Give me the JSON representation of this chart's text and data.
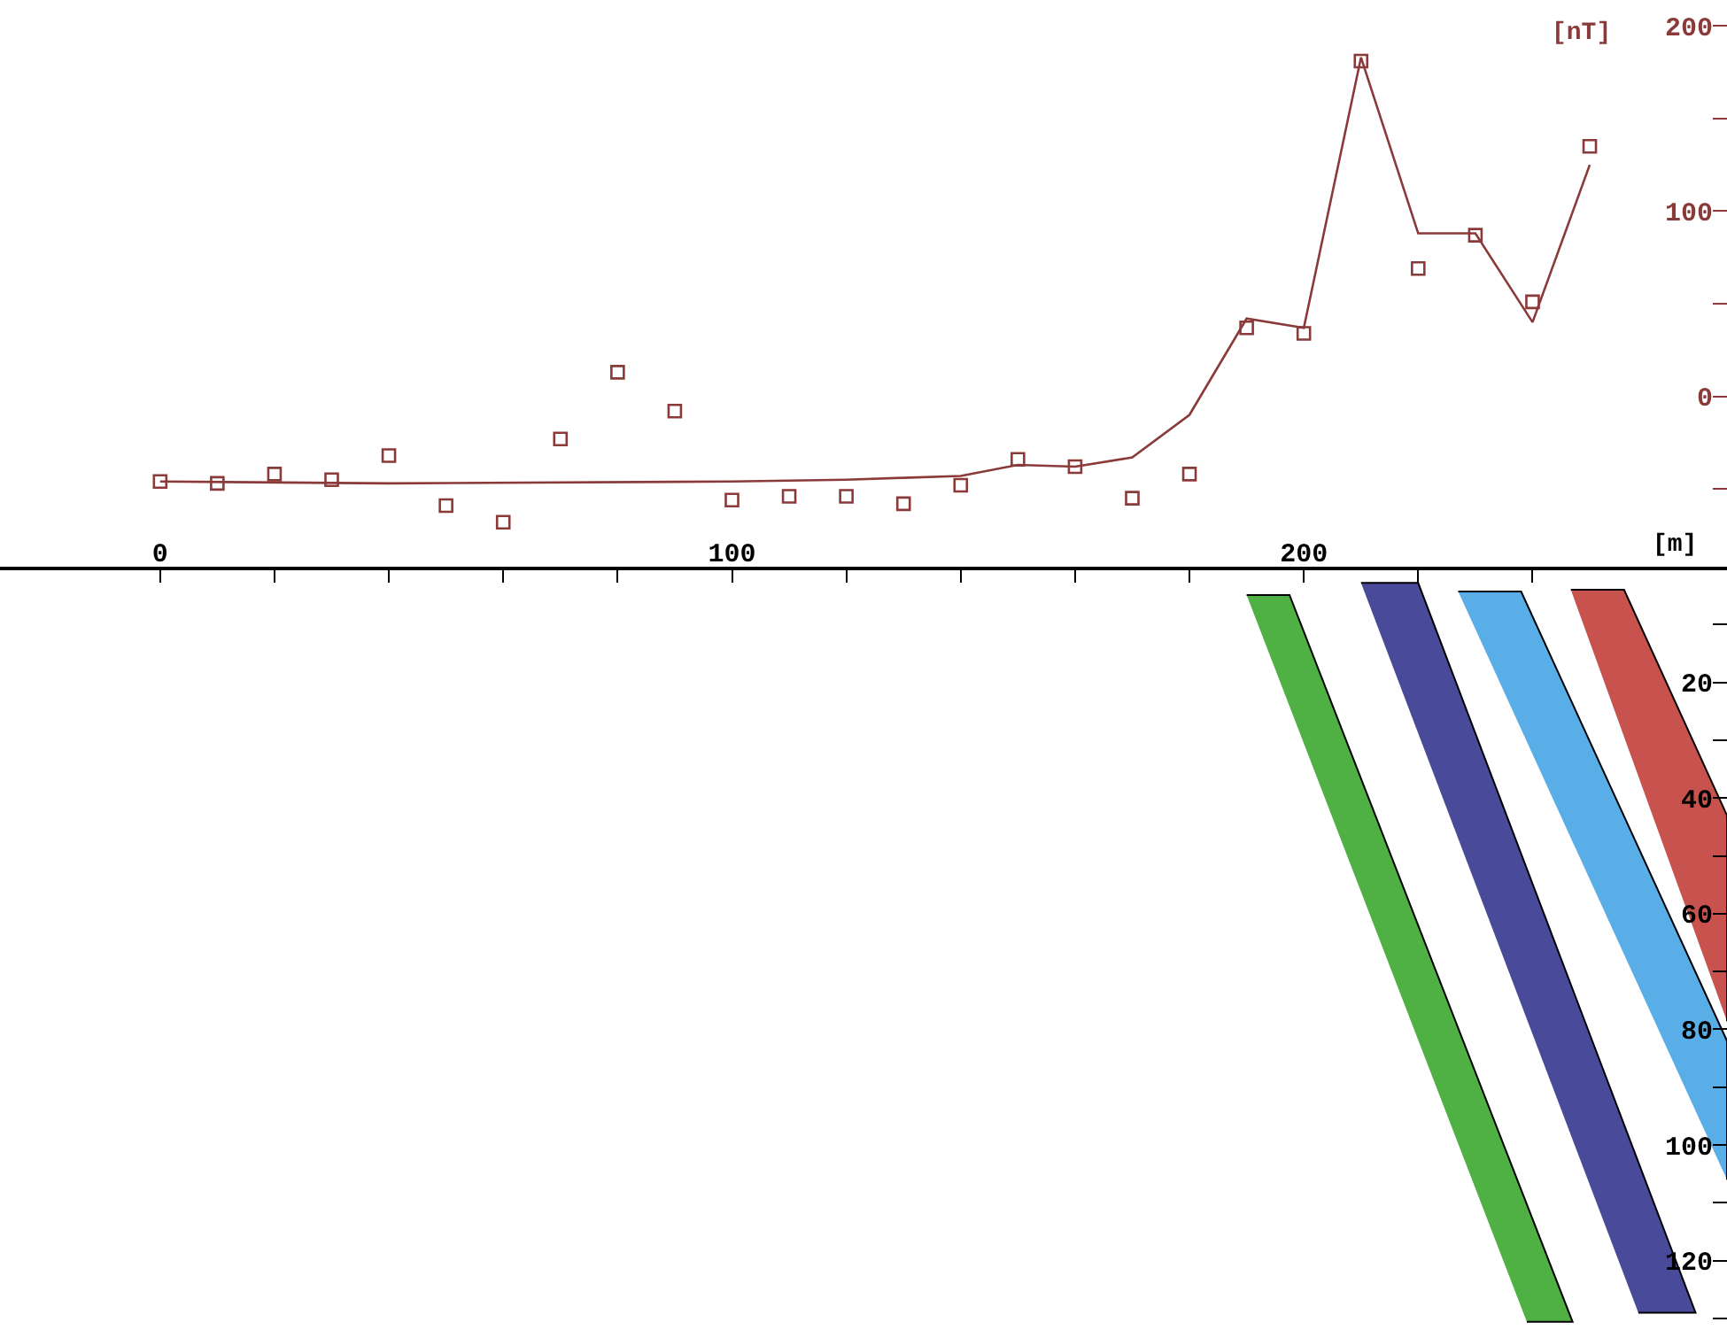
{
  "chart_data": [
    {
      "type": "line",
      "xlabel": "[m]",
      "ylabel": "[nT]",
      "xlim": [
        -28,
        274
      ],
      "ylim": [
        -92,
        214
      ],
      "xticks": [
        0,
        {
          "value": 20,
          "label": null
        },
        {
          "value": 40,
          "label": null
        },
        {
          "value": 60,
          "label": null
        },
        {
          "value": 80,
          "label": null
        },
        100,
        {
          "value": 120,
          "label": null
        },
        {
          "value": 140,
          "label": null
        },
        {
          "value": 160,
          "label": null
        },
        {
          "value": 180,
          "label": null
        },
        200,
        {
          "value": 220,
          "label": null
        },
        {
          "value": 240,
          "label": null
        }
      ],
      "yticks": [
        {
          "value": -50,
          "label": null
        },
        0,
        {
          "value": 50,
          "label": null
        },
        100,
        {
          "value": 150,
          "label": null
        },
        200
      ],
      "series": [
        {
          "type": "line",
          "color": "#8b3a3a",
          "line_style": "solid",
          "marker": "none",
          "x": [
            0,
            40,
            100,
            120,
            130,
            140,
            150,
            160,
            170,
            180,
            190,
            200,
            210,
            220,
            230,
            240,
            250
          ],
          "values": [
            -46,
            -47,
            -46,
            -45,
            -44,
            -43,
            -37,
            -38,
            -33,
            -10,
            42,
            37,
            183,
            88,
            88,
            40,
            125
          ]
        },
        {
          "type": "scatter",
          "color": "#8b3a3a",
          "marker": "square",
          "x": [
            0,
            10,
            20,
            30,
            40,
            50,
            60,
            70,
            80,
            90,
            100,
            110,
            120,
            130,
            140,
            150,
            160,
            170,
            180,
            190,
            200,
            210,
            220,
            230,
            240,
            250
          ],
          "values": [
            -46,
            -47,
            -42,
            -45,
            -32,
            -59,
            -68,
            -23,
            13,
            -8,
            -56,
            -54,
            -54,
            -58,
            -48,
            -34,
            -38,
            -55,
            -42,
            37,
            34,
            181,
            69,
            87,
            51,
            135
          ]
        }
      ]
    },
    {
      "type": "area",
      "xlim": [
        -28,
        274
      ],
      "ylim": [
        132,
        0
      ],
      "yticks": [
        {
          "value": 10,
          "label": null
        },
        20,
        {
          "value": 30,
          "label": null
        },
        40,
        {
          "value": 50,
          "label": null
        },
        60,
        {
          "value": 70,
          "label": null
        },
        80,
        {
          "value": 90,
          "label": null
        },
        100,
        {
          "value": 110,
          "label": null
        },
        120,
        {
          "value": 130,
          "label": null
        }
      ],
      "tick_labels": "y",
      "series": [
        {
          "color": "#4fb043",
          "x": [
            190,
            197.5,
            247,
            239
          ],
          "values": [
            4.9,
            4.9,
            130.6,
            130.6
          ]
        },
        {
          "color": "#4a4a9a",
          "x": [
            210,
            220,
            268.5,
            258.5
          ],
          "values": [
            2.8,
            2.8,
            129,
            129
          ]
        },
        {
          "color": "#5aaee8",
          "x": [
            227,
            238,
            274,
            274
          ],
          "values": [
            4.3,
            4.3,
            82,
            106
          ]
        },
        {
          "color": "#c8524e",
          "x": [
            246.7,
            256,
            274,
            274
          ],
          "values": [
            4,
            4,
            43,
            78.6
          ]
        }
      ]
    }
  ]
}
